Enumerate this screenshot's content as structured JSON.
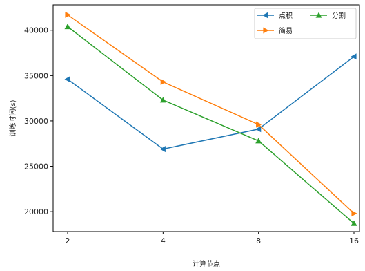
{
  "chart_data": {
    "type": "line",
    "title": "",
    "xlabel": "计算节点",
    "ylabel": "训练时间(s)",
    "categories": [
      "2",
      "4",
      "8",
      "16"
    ],
    "xscale": "categorical-evenly-spaced",
    "ylim": [
      17800,
      42800
    ],
    "yticks": [
      20000,
      25000,
      30000,
      35000,
      40000
    ],
    "grid": false,
    "legend_position": "top-right",
    "series": [
      {
        "name": "点积",
        "color": "#1f77b4",
        "marker": "triangle-left",
        "values": [
          34600,
          26900,
          29100,
          37100
        ]
      },
      {
        "name": "简易",
        "color": "#ff7f0e",
        "marker": "triangle-right",
        "values": [
          41700,
          34300,
          29600,
          19800
        ]
      },
      {
        "name": "分割",
        "color": "#2ca02c",
        "marker": "triangle-up",
        "values": [
          40400,
          32300,
          27800,
          18700
        ]
      }
    ]
  }
}
